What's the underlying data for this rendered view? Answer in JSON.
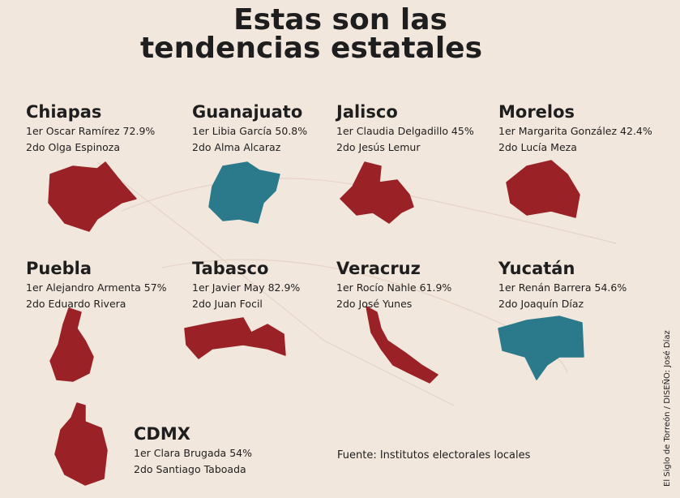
{
  "header": {
    "title_lines": [
      "Estas son las",
      "tendencias estatales"
    ]
  },
  "states": [
    {
      "name": "Chiapas",
      "first": "1er Oscar Ramírez 72.9%",
      "second": "2do Olga Espinoza",
      "color": "#9a2227"
    },
    {
      "name": "Guanajuato",
      "first": "1er Libia García 50.8%",
      "second": "2do Alma Alcaraz",
      "color": "#2b7a8c"
    },
    {
      "name": "Jalisco",
      "first": "1er Claudia Delgadillo 45%",
      "second": "2do Jesús Lemur",
      "color": "#9a2227"
    },
    {
      "name": "Morelos",
      "first": "1er Margarita González 42.4%",
      "second": "2do Lucía Meza",
      "color": "#9a2227"
    },
    {
      "name": "Puebla",
      "first": "1er Alejandro Armenta 57%",
      "second": "2do Eduardo Rivera",
      "color": "#9a2227"
    },
    {
      "name": "Tabasco",
      "first": "1er Javier May 82.9%",
      "second": "2do Juan Focil",
      "color": "#9a2227"
    },
    {
      "name": "Veracruz",
      "first": "1er Rocío Nahle 61.9%",
      "second": "2do José Yunes",
      "color": "#9a2227"
    },
    {
      "name": "Yucatán",
      "first": "1er Renán Barrera 54.6%",
      "second": "2do Joaquín Díaz",
      "color": "#2b7a8c"
    },
    {
      "name": "CDMX",
      "first": "1er Clara Brugada 54%",
      "second": "2do Santiago Taboada",
      "color": "#9a2227"
    }
  ],
  "source": "Fuente: Institutos electorales locales",
  "credit": "El Siglo de Torreón / DISEÑO: José Díaz"
}
